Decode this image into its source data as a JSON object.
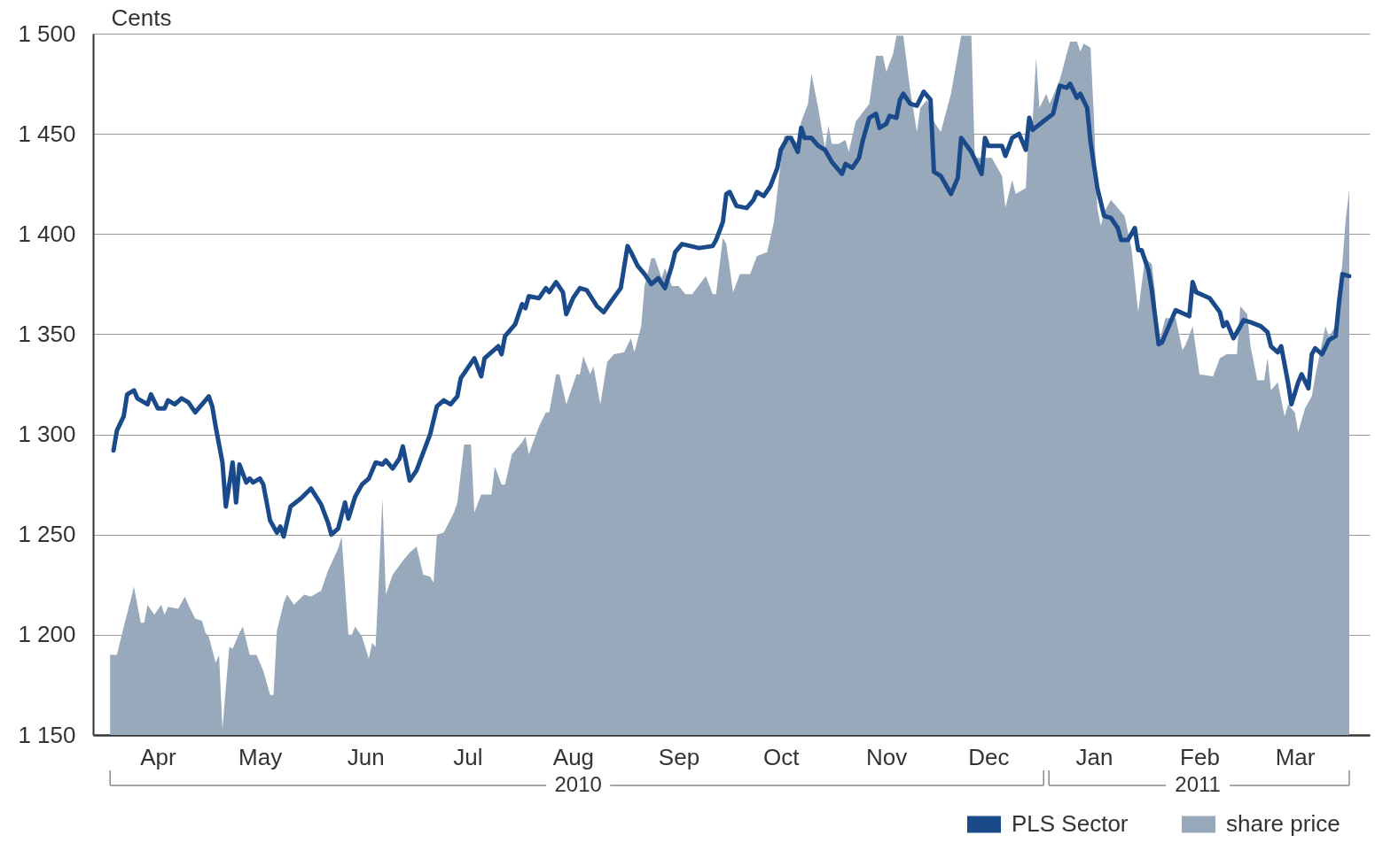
{
  "chart_data": {
    "type": "line",
    "ylabel": "Cents",
    "xlim": [
      "2010-03-27",
      "2011-04-06"
    ],
    "xticks": [
      {
        "value": "2010-04-15",
        "label": "Apr"
      },
      {
        "value": "2010-05-15",
        "label": "May"
      },
      {
        "value": "2010-06-15",
        "label": "Jun"
      },
      {
        "value": "2010-07-15",
        "label": "Jul"
      },
      {
        "value": "2010-08-15",
        "label": "Aug"
      },
      {
        "value": "2010-09-15",
        "label": "Sep"
      },
      {
        "value": "2010-10-15",
        "label": "Oct"
      },
      {
        "value": "2010-11-15",
        "label": "Nov"
      },
      {
        "value": "2010-12-15",
        "label": "Dec"
      },
      {
        "value": "2011-01-15",
        "label": "Jan"
      },
      {
        "value": "2011-02-15",
        "label": "Feb"
      },
      {
        "value": "2011-03-15",
        "label": "Mar"
      }
    ],
    "ylim": [
      1150,
      1500
    ],
    "yticks": [
      {
        "value": 1150,
        "label": "1 150"
      },
      {
        "value": 1200,
        "label": "1 200"
      },
      {
        "value": 1250,
        "label": "1 250"
      },
      {
        "value": 1300,
        "label": "1 300"
      },
      {
        "value": 1350,
        "label": "1 350"
      },
      {
        "value": 1400,
        "label": "1 400"
      },
      {
        "value": 1450,
        "label": "1 450"
      },
      {
        "value": 1500,
        "label": "1 500"
      }
    ],
    "grid": "y",
    "legend": "bottom right",
    "annotations": [
      "2010",
      "2011"
    ],
    "series": [
      {
        "name": "PLS Sector",
        "color": "#1a4a8a",
        "x": [
          "2010-04-02",
          "2010-04-03",
          "2010-04-05",
          "2010-04-06",
          "2010-04-08",
          "2010-04-09",
          "2010-04-12",
          "2010-04-13",
          "2010-04-15",
          "2010-04-17",
          "2010-04-18",
          "2010-04-20",
          "2010-04-22",
          "2010-04-24",
          "2010-04-26",
          "2010-04-30",
          "2010-05-01",
          "2010-05-02",
          "2010-05-04",
          "2010-05-05",
          "2010-05-07",
          "2010-05-08",
          "2010-05-09",
          "2010-05-11",
          "2010-05-12",
          "2010-05-13",
          "2010-05-15",
          "2010-05-16",
          "2010-05-18",
          "2010-05-20",
          "2010-05-21",
          "2010-05-22",
          "2010-05-24",
          "2010-05-27",
          "2010-05-30",
          "2010-06-02",
          "2010-06-04",
          "2010-06-05",
          "2010-06-07",
          "2010-06-09",
          "2010-06-10",
          "2010-06-12",
          "2010-06-14",
          "2010-06-16",
          "2010-06-18",
          "2010-06-20",
          "2010-06-21",
          "2010-06-23",
          "2010-06-25",
          "2010-06-26",
          "2010-06-28",
          "2010-06-30",
          "2010-07-02",
          "2010-07-04",
          "2010-07-06",
          "2010-07-08",
          "2010-07-10",
          "2010-07-12",
          "2010-07-13",
          "2010-07-15",
          "2010-07-17",
          "2010-07-19",
          "2010-07-20",
          "2010-07-22",
          "2010-07-24",
          "2010-07-25",
          "2010-07-26",
          "2010-07-29",
          "2010-07-31",
          "2010-08-01",
          "2010-08-02",
          "2010-08-05",
          "2010-08-07",
          "2010-08-08",
          "2010-08-10",
          "2010-08-12",
          "2010-08-13",
          "2010-08-15",
          "2010-08-17",
          "2010-08-19",
          "2010-08-22",
          "2010-08-24",
          "2010-08-26",
          "2010-08-29",
          "2010-08-31",
          "2010-09-01",
          "2010-09-03",
          "2010-09-05",
          "2010-09-07",
          "2010-09-09",
          "2010-09-11",
          "2010-09-13",
          "2010-09-14",
          "2010-09-16",
          "2010-09-21",
          "2010-09-25",
          "2010-09-26",
          "2010-09-28",
          "2010-09-29",
          "2010-09-30",
          "2010-10-02",
          "2010-10-05",
          "2010-10-07",
          "2010-10-08",
          "2010-10-10",
          "2010-10-12",
          "2010-10-14",
          "2010-10-15",
          "2010-10-17",
          "2010-10-18",
          "2010-10-20",
          "2010-10-21",
          "2010-10-22",
          "2010-10-24",
          "2010-10-26",
          "2010-10-28",
          "2010-10-30",
          "2010-11-02",
          "2010-11-03",
          "2010-11-05",
          "2010-11-07",
          "2010-11-08",
          "2010-11-10",
          "2010-11-12",
          "2010-11-13",
          "2010-11-15",
          "2010-11-16",
          "2010-11-18",
          "2010-11-19",
          "2010-11-20",
          "2010-11-22",
          "2010-11-24",
          "2010-11-26",
          "2010-11-28",
          "2010-11-29",
          "2010-12-01",
          "2010-12-04",
          "2010-12-06",
          "2010-12-07",
          "2010-12-10",
          "2010-12-13",
          "2010-12-14",
          "2010-12-15",
          "2010-12-19",
          "2010-12-20",
          "2010-12-22",
          "2010-12-24",
          "2010-12-26",
          "2010-12-27",
          "2010-12-28",
          "2010-12-31",
          "2011-01-03",
          "2011-01-05",
          "2011-01-07",
          "2011-01-08",
          "2011-01-10",
          "2011-01-11",
          "2011-01-13",
          "2011-01-14",
          "2011-01-16",
          "2011-01-18",
          "2011-01-20",
          "2011-01-22",
          "2011-01-23",
          "2011-01-25",
          "2011-01-27",
          "2011-01-28",
          "2011-01-29",
          "2011-01-31",
          "2011-02-01",
          "2011-02-03",
          "2011-02-04",
          "2011-02-08",
          "2011-02-12",
          "2011-02-13",
          "2011-02-14",
          "2011-02-18",
          "2011-02-21",
          "2011-02-22",
          "2011-02-23",
          "2011-02-25",
          "2011-02-26",
          "2011-02-28",
          "2011-03-02",
          "2011-03-05",
          "2011-03-07",
          "2011-03-08",
          "2011-03-10",
          "2011-03-11",
          "2011-03-13",
          "2011-03-14",
          "2011-03-16",
          "2011-03-17",
          "2011-03-19",
          "2011-03-20",
          "2011-03-21",
          "2011-03-23",
          "2011-03-25",
          "2011-03-27",
          "2011-03-28",
          "2011-03-29",
          "2011-03-31"
        ],
        "values": [
          1292,
          1302,
          1309,
          1320,
          1322,
          1318,
          1315,
          1320,
          1313,
          1313,
          1317,
          1315,
          1318,
          1316,
          1311,
          1319,
          1314,
          1304,
          1286,
          1264,
          1286,
          1266,
          1285,
          1276,
          1278,
          1276,
          1278,
          1275,
          1257,
          1251,
          1254,
          1249,
          1264,
          1268,
          1273,
          1265,
          1256,
          1250,
          1253,
          1266,
          1258,
          1269,
          1275,
          1278,
          1286,
          1285,
          1287,
          1283,
          1288,
          1294,
          1277,
          1282,
          1291,
          1300,
          1314,
          1317,
          1315,
          1319,
          1328,
          1333,
          1338,
          1329,
          1338,
          1341,
          1344,
          1340,
          1349,
          1355,
          1365,
          1363,
          1369,
          1368,
          1373,
          1371,
          1376,
          1371,
          1360,
          1368,
          1373,
          1372,
          1364,
          1361,
          1366,
          1373,
          1394,
          1391,
          1384,
          1380,
          1375,
          1378,
          1373,
          1384,
          1391,
          1395,
          1393,
          1394,
          1397,
          1406,
          1420,
          1421,
          1414,
          1413,
          1417,
          1421,
          1419,
          1424,
          1433,
          1442,
          1448,
          1448,
          1441,
          1453,
          1448,
          1448,
          1444,
          1442,
          1436,
          1430,
          1435,
          1433,
          1438,
          1446,
          1458,
          1460,
          1453,
          1455,
          1459,
          1458,
          1467,
          1470,
          1465,
          1464,
          1471,
          1467,
          1431,
          1429,
          1420,
          1428,
          1448,
          1441,
          1430,
          1448,
          1444,
          1444,
          1439,
          1448,
          1450,
          1442,
          1458,
          1452,
          1456,
          1460,
          1474,
          1473,
          1475,
          1468,
          1470,
          1463,
          1446,
          1423,
          1409,
          1408,
          1403,
          1397,
          1397,
          1403,
          1392,
          1392,
          1382,
          1372,
          1345,
          1346,
          1362,
          1359,
          1376,
          1371,
          1368,
          1361,
          1354,
          1356,
          1348,
          1351,
          1357,
          1356,
          1354,
          1351,
          1344,
          1341,
          1344,
          1326,
          1315,
          1326,
          1330,
          1323,
          1340,
          1343,
          1340,
          1347,
          1349,
          1366,
          1380,
          1379
        ]
      },
      {
        "name": "share price",
        "type": "area",
        "color": "#97a9ba",
        "x": [
          "2010-04-01",
          "2010-04-03",
          "2010-04-05",
          "2010-04-07",
          "2010-04-08",
          "2010-04-10",
          "2010-04-11",
          "2010-04-12",
          "2010-04-14",
          "2010-04-16",
          "2010-04-17",
          "2010-04-18",
          "2010-04-21",
          "2010-04-23",
          "2010-04-24",
          "2010-04-26",
          "2010-04-28",
          "2010-04-29",
          "2010-04-30",
          "2010-05-02",
          "2010-05-03",
          "2010-05-04",
          "2010-05-06",
          "2010-05-07",
          "2010-05-09",
          "2010-05-10",
          "2010-05-12",
          "2010-05-14",
          "2010-05-16",
          "2010-05-18",
          "2010-05-19",
          "2010-05-20",
          "2010-05-22",
          "2010-05-23",
          "2010-05-25",
          "2010-05-28",
          "2010-05-30",
          "2010-06-02",
          "2010-06-04",
          "2010-06-07",
          "2010-06-08",
          "2010-06-10",
          "2010-06-11",
          "2010-06-12",
          "2010-06-14",
          "2010-06-16",
          "2010-06-17",
          "2010-06-18",
          "2010-06-20",
          "2010-06-21",
          "2010-06-23",
          "2010-06-26",
          "2010-06-28",
          "2010-06-30",
          "2010-07-02",
          "2010-07-04",
          "2010-07-05",
          "2010-07-06",
          "2010-07-08",
          "2010-07-11",
          "2010-07-12",
          "2010-07-14",
          "2010-07-16",
          "2010-07-17",
          "2010-07-19",
          "2010-07-22",
          "2010-07-23",
          "2010-07-25",
          "2010-07-26",
          "2010-07-28",
          "2010-07-31",
          "2010-08-01",
          "2010-08-02",
          "2010-08-05",
          "2010-08-07",
          "2010-08-08",
          "2010-08-10",
          "2010-08-11",
          "2010-08-13",
          "2010-08-16",
          "2010-08-17",
          "2010-08-18",
          "2010-08-20",
          "2010-08-21",
          "2010-08-23",
          "2010-08-25",
          "2010-08-27",
          "2010-08-30",
          "2010-09-01",
          "2010-09-02",
          "2010-09-04",
          "2010-09-05",
          "2010-09-07",
          "2010-09-08",
          "2010-09-10",
          "2010-09-11",
          "2010-09-13",
          "2010-09-15",
          "2010-09-17",
          "2010-09-19",
          "2010-09-23",
          "2010-09-25",
          "2010-09-26",
          "2010-09-28",
          "2010-09-29",
          "2010-10-01",
          "2010-10-03",
          "2010-10-06",
          "2010-10-08",
          "2010-10-11",
          "2010-10-13",
          "2010-10-15",
          "2010-10-16",
          "2010-10-18",
          "2010-10-20",
          "2010-10-21",
          "2010-10-23",
          "2010-10-24",
          "2010-10-26",
          "2010-10-28",
          "2010-10-29",
          "2010-10-30",
          "2010-11-01",
          "2010-11-03",
          "2010-11-04",
          "2010-11-06",
          "2010-11-10",
          "2010-11-12",
          "2010-11-14",
          "2010-11-15",
          "2010-11-17",
          "2010-11-18",
          "2010-11-20",
          "2010-11-22",
          "2010-11-24",
          "2010-11-25",
          "2010-11-27",
          "2010-11-29",
          "2010-12-01",
          "2010-12-04",
          "2010-12-07",
          "2010-12-10",
          "2010-12-11",
          "2010-12-16",
          "2010-12-19",
          "2010-12-20",
          "2010-12-22",
          "2010-12-23",
          "2010-12-26",
          "2010-12-27",
          "2010-12-28",
          "2010-12-29",
          "2010-12-30",
          "2011-01-01",
          "2011-01-02",
          "2011-01-05",
          "2011-01-07",
          "2011-01-08",
          "2011-01-10",
          "2011-01-11",
          "2011-01-12",
          "2011-01-14",
          "2011-01-15",
          "2011-01-16",
          "2011-01-17",
          "2011-01-18",
          "2011-01-20",
          "2011-01-21",
          "2011-01-24",
          "2011-01-26",
          "2011-01-27",
          "2011-01-28",
          "2011-01-30",
          "2011-02-01",
          "2011-02-02",
          "2011-02-03",
          "2011-02-05",
          "2011-02-08",
          "2011-02-10",
          "2011-02-11",
          "2011-02-13",
          "2011-02-15",
          "2011-02-19",
          "2011-02-21",
          "2011-02-23",
          "2011-02-26",
          "2011-02-27",
          "2011-03-01",
          "2011-03-02",
          "2011-03-04",
          "2011-03-06",
          "2011-03-07",
          "2011-03-08",
          "2011-03-10",
          "2011-03-12",
          "2011-03-13",
          "2011-03-15",
          "2011-03-16",
          "2011-03-18",
          "2011-03-20",
          "2011-03-21",
          "2011-03-24",
          "2011-03-25",
          "2011-03-27",
          "2011-03-29",
          "2011-03-30",
          "2011-03-31"
        ],
        "values": [
          1190,
          1190,
          1204,
          1217,
          1224,
          1206,
          1206,
          1215,
          1210,
          1215,
          1210,
          1214,
          1213,
          1219,
          1215,
          1208,
          1207,
          1201,
          1199,
          1186,
          1190,
          1153,
          1194,
          1193,
          1201,
          1204,
          1190,
          1190,
          1182,
          1170,
          1170,
          1202,
          1216,
          1220,
          1215,
          1220,
          1219,
          1222,
          1232,
          1243,
          1249,
          1200,
          1200,
          1204,
          1199,
          1188,
          1196,
          1194,
          1268,
          1220,
          1230,
          1237,
          1241,
          1244,
          1230,
          1229,
          1226,
          1250,
          1251,
          1261,
          1266,
          1295,
          1295,
          1261,
          1270,
          1270,
          1284,
          1275,
          1275,
          1290,
          1296,
          1299,
          1290,
          1304,
          1311,
          1311,
          1330,
          1330,
          1315,
          1330,
          1330,
          1339,
          1330,
          1334,
          1315,
          1336,
          1340,
          1341,
          1348,
          1341,
          1354,
          1374,
          1388,
          1388,
          1378,
          1383,
          1374,
          1374,
          1370,
          1370,
          1379,
          1370,
          1370,
          1398,
          1395,
          1371,
          1380,
          1380,
          1389,
          1391,
          1406,
          1436,
          1449,
          1449,
          1445,
          1456,
          1465,
          1480,
          1463,
          1443,
          1454,
          1445,
          1445,
          1447,
          1441,
          1456,
          1465,
          1489,
          1489,
          1481,
          1490,
          1499,
          1499,
          1472,
          1451,
          1463,
          1467,
          1456,
          1451,
          1470,
          1499,
          1499,
          1438,
          1438,
          1429,
          1413,
          1427,
          1420,
          1423,
          1459,
          1456,
          1488,
          1463,
          1470,
          1465,
          1477,
          1490,
          1496,
          1496,
          1491,
          1495,
          1493,
          1458,
          1413,
          1404,
          1411,
          1417,
          1415,
          1409,
          1393,
          1377,
          1361,
          1388,
          1385,
          1370,
          1345,
          1358,
          1358,
          1342,
          1345,
          1354,
          1330,
          1329,
          1338,
          1340,
          1340,
          1364,
          1360,
          1344,
          1327,
          1327,
          1338,
          1322,
          1326,
          1309,
          1315,
          1311,
          1301,
          1313,
          1319,
          1329,
          1354,
          1349,
          1354,
          1386,
          1408,
          1422
        ]
      }
    ]
  }
}
